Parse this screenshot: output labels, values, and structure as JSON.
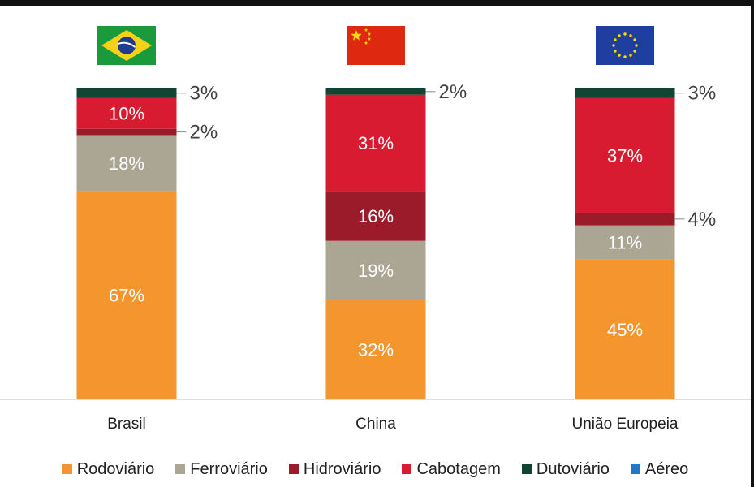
{
  "chart_data": {
    "type": "bar",
    "stacked": true,
    "categories": [
      "Brasil",
      "China",
      "União Europeia"
    ],
    "series": [
      {
        "name": "Rodoviário",
        "color": "#F4952E",
        "values": [
          67,
          32,
          45
        ]
      },
      {
        "name": "Ferroviário",
        "color": "#ABA593",
        "values": [
          18,
          19,
          11
        ]
      },
      {
        "name": "Hidroviário",
        "color": "#9B1B2A",
        "values": [
          2,
          16,
          4
        ]
      },
      {
        "name": "Cabotagem",
        "color": "#D81B30",
        "values": [
          10,
          31,
          37
        ]
      },
      {
        "name": "Dutoviário",
        "color": "#0E4535",
        "values": [
          3,
          2,
          3
        ]
      },
      {
        "name": "Aéreo",
        "color": "#1F78C8",
        "values": [
          0,
          0,
          0
        ]
      }
    ],
    "data_labels": [
      {
        "category": 0,
        "series": 0,
        "text": "67%",
        "placement": "inside"
      },
      {
        "category": 0,
        "series": 1,
        "text": "18%",
        "placement": "inside"
      },
      {
        "category": 0,
        "series": 2,
        "text": "2%",
        "placement": "outside"
      },
      {
        "category": 0,
        "series": 3,
        "text": "10%",
        "placement": "inside"
      },
      {
        "category": 0,
        "series": 4,
        "text": "3%",
        "placement": "outside"
      },
      {
        "category": 1,
        "series": 0,
        "text": "32%",
        "placement": "inside"
      },
      {
        "category": 1,
        "series": 1,
        "text": "19%",
        "placement": "inside"
      },
      {
        "category": 1,
        "series": 2,
        "text": "16%",
        "placement": "inside"
      },
      {
        "category": 1,
        "series": 3,
        "text": "31%",
        "placement": "inside"
      },
      {
        "category": 1,
        "series": 4,
        "text": "2%",
        "placement": "outside"
      },
      {
        "category": 2,
        "series": 0,
        "text": "45%",
        "placement": "inside"
      },
      {
        "category": 2,
        "series": 1,
        "text": "11%",
        "placement": "inside"
      },
      {
        "category": 2,
        "series": 2,
        "text": "4%",
        "placement": "outside"
      },
      {
        "category": 2,
        "series": 3,
        "text": "37%",
        "placement": "inside"
      },
      {
        "category": 2,
        "series": 4,
        "text": "3%",
        "placement": "outside"
      }
    ],
    "flags": [
      "brazil-flag",
      "china-flag",
      "eu-flag"
    ],
    "legend_position": "bottom",
    "grid": false,
    "ylim": [
      0,
      100
    ]
  }
}
